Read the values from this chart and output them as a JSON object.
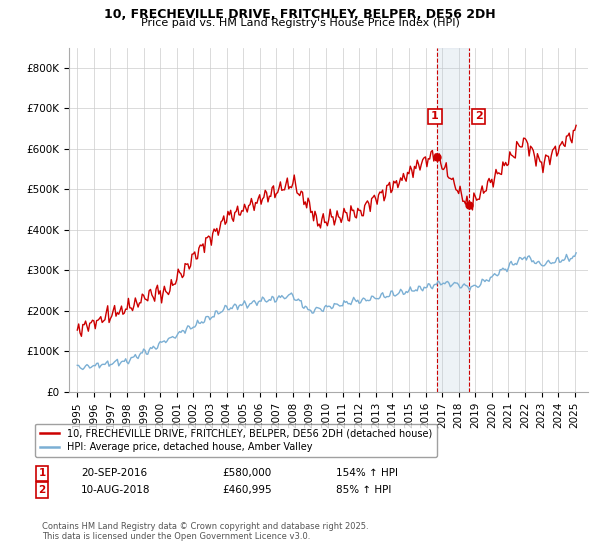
{
  "title_line1": "10, FRECHEVILLE DRIVE, FRITCHLEY, BELPER, DE56 2DH",
  "title_line2": "Price paid vs. HM Land Registry's House Price Index (HPI)",
  "legend_red": "10, FRECHEVILLE DRIVE, FRITCHLEY, BELPER, DE56 2DH (detached house)",
  "legend_blue": "HPI: Average price, detached house, Amber Valley",
  "footnote": "Contains HM Land Registry data © Crown copyright and database right 2025.\nThis data is licensed under the Open Government Licence v3.0.",
  "annotation1_label": "1",
  "annotation1_date": "20-SEP-2016",
  "annotation1_price": "£580,000",
  "annotation1_hpi": "154% ↑ HPI",
  "annotation2_label": "2",
  "annotation2_date": "10-AUG-2018",
  "annotation2_price": "£460,995",
  "annotation2_hpi": "85% ↑ HPI",
  "red_color": "#cc0000",
  "blue_color": "#7bafd4",
  "vline_color": "#cc0000",
  "span_color": "#ddeeff",
  "marker1_x": 2016.72,
  "marker1_y": 580000,
  "marker2_x": 2018.6,
  "marker2_y": 460995,
  "vline1_x": 2016.72,
  "vline2_x": 2018.6,
  "ylim": [
    0,
    850000
  ],
  "xlim_left": 1994.5,
  "xlim_right": 2025.8,
  "yticks": [
    0,
    100000,
    200000,
    300000,
    400000,
    500000,
    600000,
    700000,
    800000
  ],
  "ytick_labels": [
    "£0",
    "£100K",
    "£200K",
    "£300K",
    "£400K",
    "£500K",
    "£600K",
    "£700K",
    "£800K"
  ],
  "xticks": [
    1995,
    1996,
    1997,
    1998,
    1999,
    2000,
    2001,
    2002,
    2003,
    2004,
    2005,
    2006,
    2007,
    2008,
    2009,
    2010,
    2011,
    2012,
    2013,
    2014,
    2015,
    2016,
    2017,
    2018,
    2019,
    2020,
    2021,
    2022,
    2023,
    2024,
    2025
  ]
}
